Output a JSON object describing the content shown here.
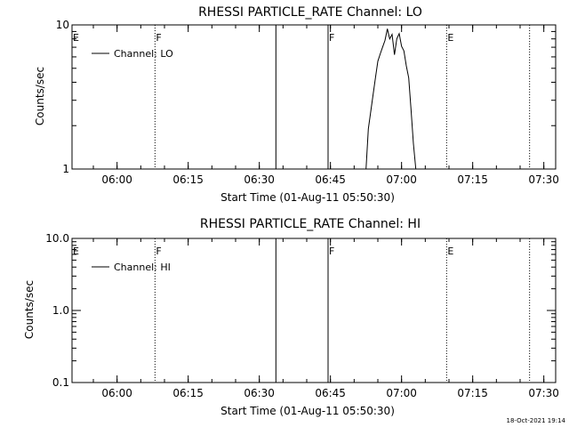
{
  "chart_data": [
    {
      "type": "line",
      "title": "RHESSI PARTICLE_RATE Channel: LO",
      "xlabel": "Start Time (01-Aug-11 05:50:30)",
      "ylabel": "Counts/sec",
      "yscale": "log",
      "xlim": [
        "05:50:30",
        "07:32:30"
      ],
      "ylim": [
        1,
        10
      ],
      "x_ticks": [
        "06:00",
        "06:15",
        "06:30",
        "06:45",
        "07:00",
        "07:15",
        "07:30"
      ],
      "y_ticks": [
        "1",
        "10"
      ],
      "legend": {
        "placement": "top-left",
        "entries": [
          "Channel: LO"
        ]
      },
      "series": [
        {
          "name": "Channel: LO",
          "x": [
            "06:52:30",
            "06:53:00",
            "06:53:30",
            "06:54:00",
            "06:54:30",
            "06:55:00",
            "06:55:30",
            "06:56:00",
            "06:56:30",
            "06:57:00",
            "06:57:30",
            "06:58:00",
            "06:58:30",
            "06:59:00",
            "06:59:30",
            "07:00:00",
            "07:00:30",
            "07:01:00",
            "07:01:30",
            "07:02:00",
            "07:02:30",
            "07:03:00"
          ],
          "values": [
            1.0,
            1.9,
            2.5,
            3.3,
            4.3,
            5.6,
            6.3,
            7.0,
            7.8,
            9.4,
            8.0,
            8.6,
            6.2,
            8.0,
            8.7,
            7.1,
            6.6,
            5.2,
            4.3,
            2.6,
            1.5,
            1.0
          ]
        }
      ],
      "markers": [
        {
          "time": "05:50:30",
          "label": "E",
          "style": "solid"
        },
        {
          "time": "06:08:00",
          "label": "F",
          "style": "dotted"
        },
        {
          "time": "06:33:30",
          "label": "",
          "style": "solid"
        },
        {
          "time": "06:44:30",
          "label": "F",
          "style": "solid"
        },
        {
          "time": "07:09:30",
          "label": "E",
          "style": "dotted"
        },
        {
          "time": "07:27:00",
          "label": "",
          "style": "dotted"
        }
      ]
    },
    {
      "type": "line",
      "title": "RHESSI PARTICLE_RATE Channel: HI",
      "xlabel": "Start Time (01-Aug-11 05:50:30)",
      "ylabel": "Counts/sec",
      "yscale": "log",
      "xlim": [
        "05:50:30",
        "07:32:30"
      ],
      "ylim": [
        0.1,
        10
      ],
      "x_ticks": [
        "06:00",
        "06:15",
        "06:30",
        "06:45",
        "07:00",
        "07:15",
        "07:30"
      ],
      "y_ticks": [
        "0.1",
        "1.0",
        "10.0"
      ],
      "legend": {
        "placement": "top-left",
        "entries": [
          "Channel: HI"
        ]
      },
      "series": [
        {
          "name": "Channel: HI",
          "x": [],
          "values": []
        }
      ],
      "markers": [
        {
          "time": "05:50:30",
          "label": "E",
          "style": "solid"
        },
        {
          "time": "06:08:00",
          "label": "F",
          "style": "dotted"
        },
        {
          "time": "06:33:30",
          "label": "",
          "style": "solid"
        },
        {
          "time": "06:44:30",
          "label": "F",
          "style": "solid"
        },
        {
          "time": "07:09:30",
          "label": "E",
          "style": "dotted"
        },
        {
          "time": "07:27:00",
          "label": "",
          "style": "dotted"
        }
      ]
    }
  ],
  "footer": {
    "date": "18-Oct-2021 19:14"
  }
}
